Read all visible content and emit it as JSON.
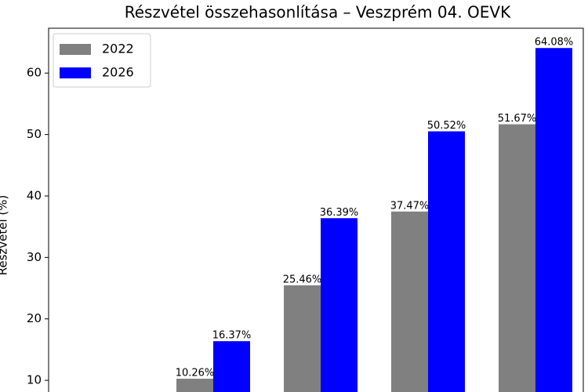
{
  "chart_data": {
    "type": "bar",
    "title": "Részvétel összehasonlítása – Veszprém 04. OEVK",
    "y_label": "Részvétel (%)",
    "categories": [
      null,
      null,
      null,
      null,
      null
    ],
    "series": [
      {
        "name": "2022",
        "color": "#808080",
        "values": [
          null,
          10.26,
          25.46,
          37.47,
          51.67
        ],
        "value_labels": [
          null,
          "10.26%",
          "25.46%",
          "37.47%",
          "51.67%"
        ]
      },
      {
        "name": "2026",
        "color": "#0000ff",
        "values": [
          null,
          16.37,
          36.39,
          50.52,
          64.08
        ],
        "value_labels": [
          null,
          "16.37%",
          "36.39%",
          "50.52%",
          "64.08%"
        ]
      }
    ],
    "ylim": [
      8.1,
      67.3
    ],
    "yticks": [
      10,
      20,
      30,
      40,
      50,
      60
    ],
    "legend": "upper left"
  }
}
